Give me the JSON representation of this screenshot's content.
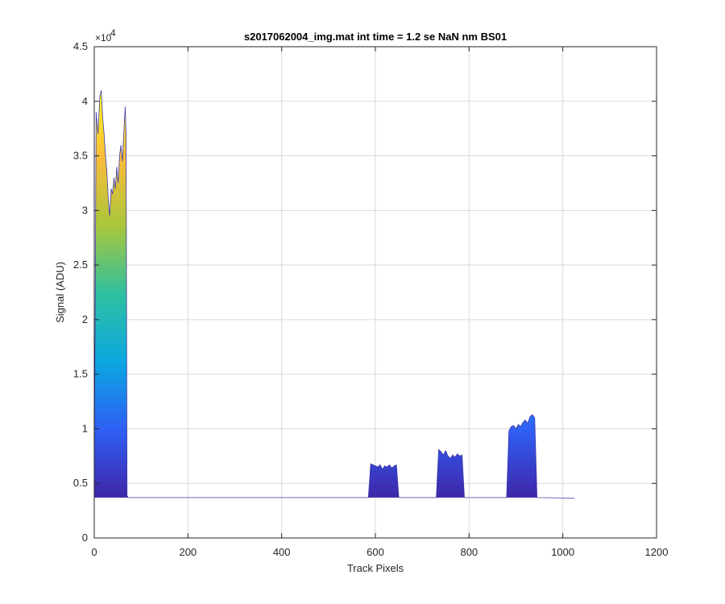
{
  "chart_data": {
    "type": "area",
    "title": "s2017062004_img.mat int time = 1.2 se  NaN nm BS01",
    "xlabel": "Track Pixels",
    "ylabel": "Signal (ADU)",
    "xlim": [
      0,
      1200
    ],
    "ylim": [
      0,
      45000
    ],
    "x_ticks": [
      0,
      200,
      400,
      600,
      800,
      1000,
      1200
    ],
    "x_tick_labels": [
      "0",
      "200",
      "400",
      "600",
      "800",
      "1000",
      "1200"
    ],
    "y_ticks": [
      0,
      5000,
      10000,
      15000,
      20000,
      25000,
      30000,
      35000,
      40000,
      45000
    ],
    "y_tick_labels": [
      "0",
      "0.5",
      "1",
      "1.5",
      "2",
      "2.5",
      "3",
      "3.5",
      "4",
      "4.5"
    ],
    "y_exponent_label": "×10",
    "y_exponent": "4",
    "grid": true,
    "baseline": 3700,
    "colormap": [
      "#3e26a8",
      "#2f5ff5",
      "#0ba7e0",
      "#2fc0a0",
      "#a9c73b",
      "#fabc3a",
      "#f9fb15"
    ],
    "series": [
      {
        "x": [
          0,
          4,
          8,
          12,
          15,
          18,
          21,
          24,
          27,
          30,
          33,
          36,
          39,
          42,
          45,
          48,
          51,
          54,
          57,
          60,
          63,
          66,
          68,
          70,
          72,
          80,
          200,
          400,
          585,
          590,
          595,
          600,
          605,
          610,
          615,
          620,
          625,
          630,
          635,
          640,
          645,
          650,
          655,
          730,
          735,
          740,
          745,
          750,
          755,
          760,
          765,
          770,
          775,
          780,
          785,
          790,
          795,
          880,
          885,
          890,
          895,
          900,
          905,
          910,
          915,
          920,
          925,
          930,
          935,
          940,
          945,
          1025
        ],
        "y": [
          3700,
          39000,
          37000,
          40500,
          41000,
          38500,
          37000,
          35000,
          33500,
          31000,
          29500,
          32000,
          31500,
          33000,
          32000,
          34000,
          32500,
          35000,
          36000,
          34500,
          37000,
          39500,
          37000,
          3900,
          3700,
          3700,
          3700,
          3700,
          3700,
          6800,
          6700,
          6600,
          6500,
          6700,
          6300,
          6600,
          6500,
          6700,
          6400,
          6600,
          6700,
          3700,
          3700,
          3700,
          8100,
          7900,
          7600,
          8000,
          7500,
          7300,
          7600,
          7400,
          7700,
          7500,
          7600,
          3700,
          3700,
          3700,
          9800,
          10200,
          10300,
          10000,
          10400,
          10200,
          10600,
          10800,
          10500,
          11100,
          11300,
          11000,
          3700,
          3650
        ]
      }
    ]
  }
}
